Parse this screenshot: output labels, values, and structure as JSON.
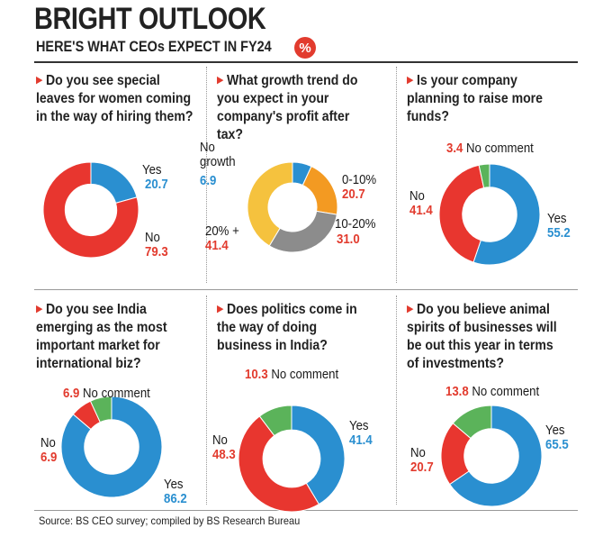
{
  "title": "BRIGHT OUTLOOK",
  "subtitle": "HERE'S WHAT CEOs EXPECT IN FY24",
  "badge": "%",
  "source": "Source: BS CEO survey; compiled by BS Research Bureau",
  "colors": {
    "yes": "#2a8fd0",
    "no": "#e8362f",
    "no_comment": "#5bb35a",
    "g_no_growth": "#2a8fd0",
    "g_0_10": "#f39a22",
    "g_10_20": "#8c8c8c",
    "g_20_plus": "#f5c23e"
  },
  "questions": [
    "Do you see special leaves for women coming in the way of hiring them?",
    "What growth trend do you expect in your company's profit after tax?",
    "Is your company planning to raise more funds?",
    "Do you see India emerging as the most important market for international biz?",
    "Does politics come in the way of doing business in India?",
    "Do you believe animal spirits of businesses will be out this year in terms of investments?"
  ],
  "labels": {
    "yes": "Yes",
    "no": "No",
    "no_comment": "No comment",
    "no_growth_1": "No",
    "no_growth_2": "growth",
    "g_0_10": "0-10%",
    "g_10_20": "10-20%",
    "g_20_plus": "20% +"
  },
  "chart_data": [
    {
      "type": "pie",
      "categories": [
        "Yes",
        "No"
      ],
      "values": [
        20.7,
        79.3
      ]
    },
    {
      "type": "pie",
      "categories": [
        "No growth",
        "0-10%",
        "10-20%",
        "20% +"
      ],
      "values": [
        6.9,
        20.7,
        31.0,
        41.4
      ]
    },
    {
      "type": "pie",
      "categories": [
        "Yes",
        "No",
        "No comment"
      ],
      "values": [
        55.2,
        41.4,
        3.4
      ]
    },
    {
      "type": "pie",
      "categories": [
        "Yes",
        "No",
        "No comment"
      ],
      "values": [
        86.2,
        6.9,
        6.9
      ]
    },
    {
      "type": "pie",
      "categories": [
        "Yes",
        "No",
        "No comment"
      ],
      "values": [
        41.4,
        48.3,
        10.3
      ]
    },
    {
      "type": "pie",
      "categories": [
        "Yes",
        "No",
        "No comment"
      ],
      "values": [
        65.5,
        20.7,
        13.8
      ]
    }
  ],
  "values_text": {
    "c1_yes": "20.7",
    "c1_no": "79.3",
    "c2_ng": "6.9",
    "c2_0_10": "20.7",
    "c2_10_20": "31.0",
    "c2_20p": "41.4",
    "c3_nc": "3.4",
    "c3_no": "41.4",
    "c3_yes": "55.2",
    "c4_nc": "6.9",
    "c4_no": "6.9",
    "c4_yes": "86.2",
    "c5_nc": "10.3",
    "c5_no": "48.3",
    "c5_yes": "41.4",
    "c6_nc": "13.8",
    "c6_no": "20.7",
    "c6_yes": "65.5"
  }
}
